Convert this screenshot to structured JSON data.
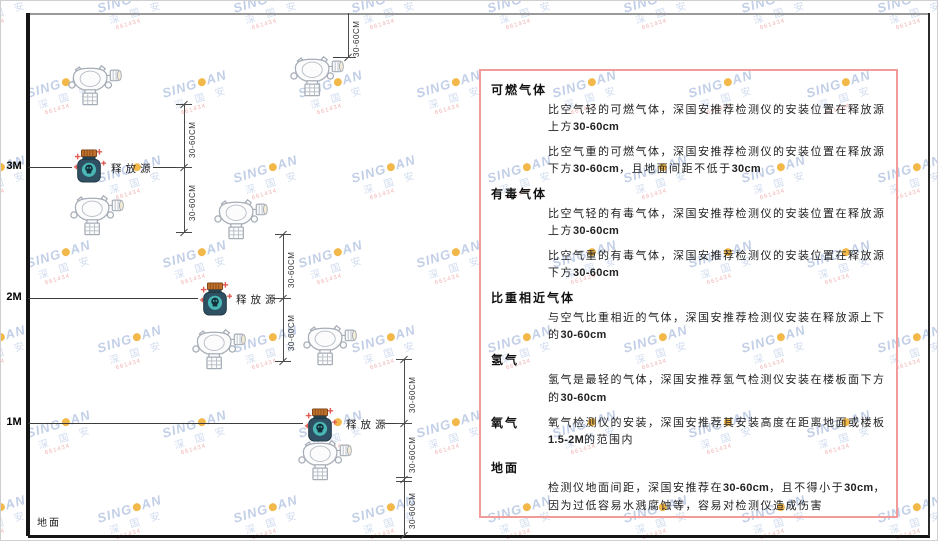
{
  "watermark": {
    "brand_left": "SING",
    "brand_right": "AN",
    "brand_cn": "深 国 安",
    "contact_red": "661434"
  },
  "diagram": {
    "height_markers": [
      "3M",
      "2M",
      "1M"
    ],
    "release_source_label": "释放源",
    "ground_label": "地面",
    "dimension_label": "30-60CM"
  },
  "panel": {
    "sections": [
      {
        "header": "可燃气体",
        "inline": false,
        "paragraphs": [
          "比空气轻的可燃气体，深国安推荐检测仪的安装位置在释放源上方30-60cm",
          "比空气重的可燃气体，深国安推荐检测仪的安装位置在释放源下方30-60cm，且地面间距不低于30cm"
        ]
      },
      {
        "header": "有毒气体",
        "inline": false,
        "paragraphs": [
          "比空气轻的有毒气体，深国安推荐检测仪的安装位置在释放源上方30-60cm",
          "比空气重的有毒气体，深国安推荐检测仪的安装位置在释放源下方30-60cm"
        ]
      },
      {
        "header": "比重相近气体",
        "inline": false,
        "paragraphs": [
          "与空气比重相近的气体，深国安推荐检测仪安装在释放源上下的30-60cm"
        ]
      },
      {
        "header": "氢气",
        "inline": false,
        "paragraphs": [
          "氢气是最轻的气体，深国安推荐氢气检测仪安装在楼板面下方的30-60cm"
        ]
      },
      {
        "header": "氧气",
        "inline": true,
        "paragraphs": [
          "氧气检测仪的安装，深国安推荐其安装高度在距离地面或楼板1.5-2M的范围内"
        ]
      },
      {
        "header": "地面",
        "inline": false,
        "paragraphs": [
          "检测仪地面间距，深国安推荐在30-60cm，且不得小于30cm，因为过低容易水溅腐蚀等，容易对检测仪造成伤害"
        ]
      }
    ]
  },
  "colors": {
    "panel_border": "#f29b9b",
    "watermark_blue": "#b3c4e2",
    "watermark_cn_blue": "#c6d4ec",
    "watermark_red": "#eda0a0",
    "watermark_dot": "#f0a81e",
    "source_body": "#2f5063",
    "source_circle": "#49b8b4",
    "source_cap": "#c0702a",
    "sparkle_red": "#e05b52"
  }
}
